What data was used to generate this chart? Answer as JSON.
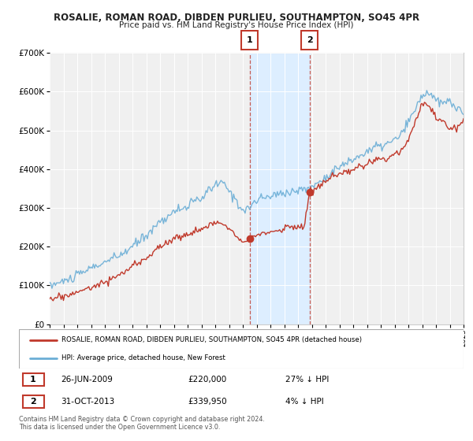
{
  "title1": "ROSALIE, ROMAN ROAD, DIBDEN PURLIEU, SOUTHAMPTON, SO45 4PR",
  "title2": "Price paid vs. HM Land Registry's House Price Index (HPI)",
  "legend_label1": "ROSALIE, ROMAN ROAD, DIBDEN PURLIEU, SOUTHAMPTON, SO45 4PR (detached house)",
  "legend_label2": "HPI: Average price, detached house, New Forest",
  "footnote": "Contains HM Land Registry data © Crown copyright and database right 2024.\nThis data is licensed under the Open Government Licence v3.0.",
  "sale1_date": "26-JUN-2009",
  "sale1_price": 220000,
  "sale1_hpi": "27% ↓ HPI",
  "sale2_date": "31-OCT-2013",
  "sale2_price": 339950,
  "sale2_hpi": "4% ↓ HPI",
  "color_red": "#c0392b",
  "color_blue": "#6baed6",
  "color_shade": "#ddeeff",
  "background_plot": "#f0f0f0",
  "background_fig": "#ffffff",
  "ylim": [
    0,
    700000
  ],
  "yticks": [
    0,
    100000,
    200000,
    300000,
    400000,
    500000,
    600000,
    700000
  ],
  "ytick_labels": [
    "£0",
    "£100K",
    "£200K",
    "£300K",
    "£400K",
    "£500K",
    "£600K",
    "£700K"
  ],
  "year_start": 1995,
  "year_end": 2025,
  "sale1_year": 2009.49,
  "sale2_year": 2013.84
}
